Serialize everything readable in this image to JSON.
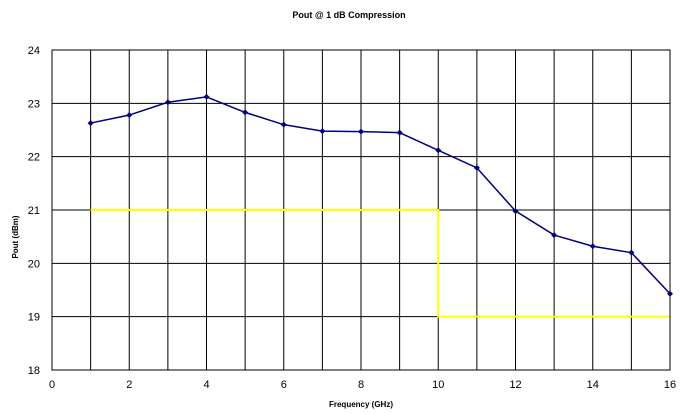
{
  "chart_data": {
    "type": "line",
    "title": "Pout @ 1 dB Compression",
    "xlabel": "Frequency (GHz)",
    "ylabel": "Pout (dBm)",
    "xlim": [
      0,
      16
    ],
    "ylim": [
      18,
      24
    ],
    "x_ticks": [
      0,
      2,
      4,
      6,
      8,
      10,
      12,
      14,
      16
    ],
    "y_ticks": [
      18,
      19,
      20,
      21,
      22,
      23,
      24
    ],
    "grid": true,
    "series": [
      {
        "color": "#000080",
        "marker": "diamond",
        "x": [
          1,
          2,
          3,
          4,
          5,
          6,
          7,
          8,
          9,
          10,
          11,
          12,
          13,
          14,
          15,
          16
        ],
        "y": [
          22.63,
          22.78,
          23.02,
          23.12,
          22.83,
          22.6,
          22.48,
          22.47,
          22.45,
          22.12,
          21.79,
          20.98,
          20.53,
          20.32,
          20.2,
          19.43
        ]
      },
      {
        "color": "#ffff00",
        "marker": "none",
        "step": true,
        "x": [
          1,
          10,
          10,
          16
        ],
        "y": [
          21,
          21,
          19,
          19
        ]
      }
    ]
  }
}
